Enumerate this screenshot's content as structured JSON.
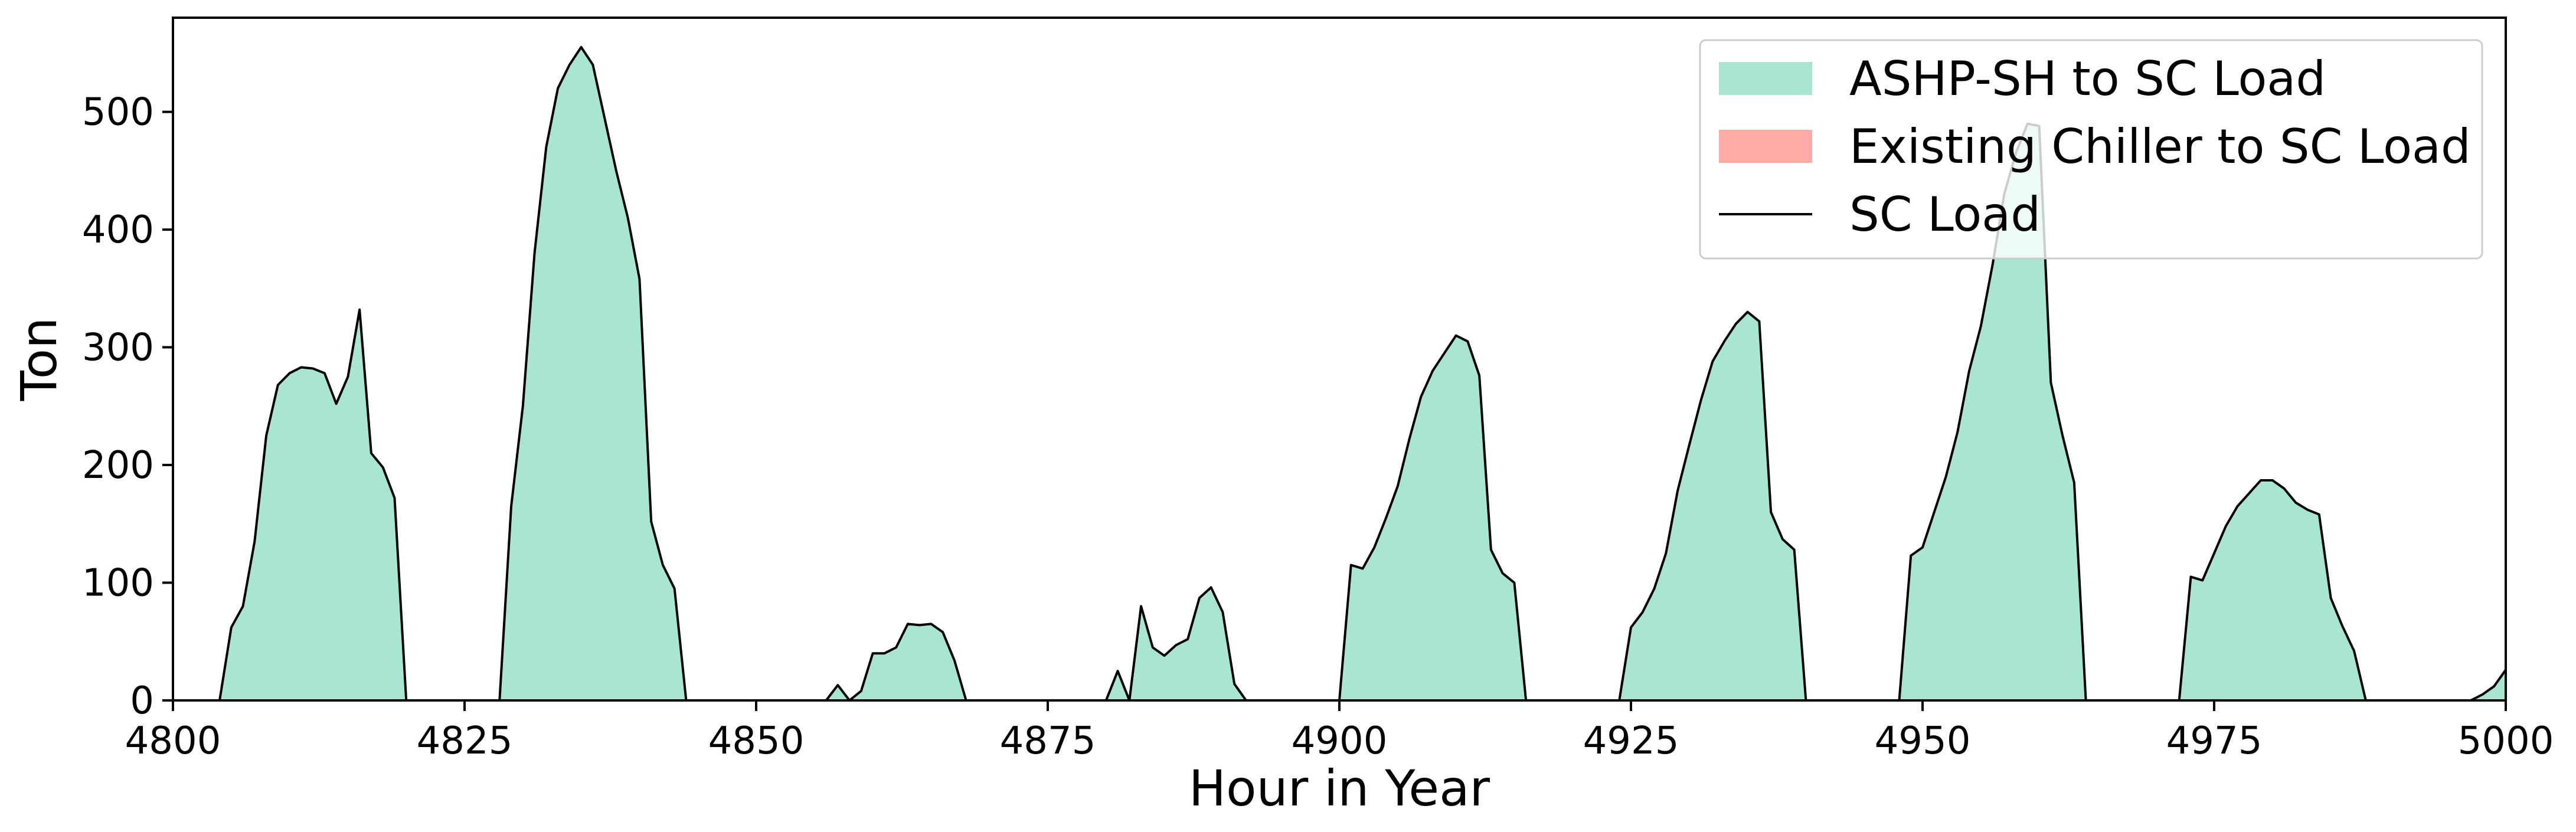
{
  "chart_data": {
    "type": "area",
    "title": "",
    "xlabel": "Hour in Year",
    "ylabel": "Ton",
    "xlim": [
      4800,
      5000
    ],
    "ylim": [
      0,
      580
    ],
    "xticks": [
      "4800",
      "4825",
      "4850",
      "4875",
      "4900",
      "4925",
      "4950",
      "4975",
      "5000"
    ],
    "yticks": [
      "0",
      "100",
      "200",
      "300",
      "400",
      "500"
    ],
    "grid": false,
    "legend_position": "top-right",
    "legend": [
      {
        "label": "ASHP-SH to SC Load",
        "kind": "area",
        "color": "#a8e6cf"
      },
      {
        "label": "Existing Chiller to SC Load",
        "kind": "area",
        "color": "#ffaaa5"
      },
      {
        "label": "SC Load",
        "kind": "line",
        "color": "#000000"
      }
    ],
    "x": [
      4800,
      4804,
      4805,
      4806,
      4807,
      4808,
      4809,
      4810,
      4811,
      4812,
      4813,
      4814,
      4815,
      4816,
      4817,
      4818,
      4819,
      4820,
      4828,
      4829,
      4830,
      4831,
      4832,
      4833,
      4834,
      4835,
      4836,
      4837,
      4838,
      4839,
      4840,
      4841,
      4842,
      4843,
      4844,
      4856,
      4857,
      4858,
      4859,
      4860,
      4861,
      4862,
      4863,
      4864,
      4865,
      4866,
      4867,
      4868,
      4880,
      4881,
      4882,
      4883,
      4884,
      4885,
      4886,
      4887,
      4888,
      4889,
      4890,
      4891,
      4892,
      4900,
      4901,
      4902,
      4903,
      4904,
      4905,
      4906,
      4907,
      4908,
      4909,
      4910,
      4911,
      4912,
      4913,
      4914,
      4915,
      4916,
      4924,
      4925,
      4926,
      4927,
      4928,
      4929,
      4930,
      4931,
      4932,
      4933,
      4934,
      4935,
      4936,
      4937,
      4938,
      4939,
      4940,
      4948,
      4949,
      4950,
      4951,
      4952,
      4953,
      4954,
      4955,
      4956,
      4957,
      4958,
      4959,
      4960,
      4961,
      4962,
      4963,
      4964,
      4972,
      4973,
      4974,
      4975,
      4976,
      4977,
      4978,
      4979,
      4980,
      4981,
      4982,
      4983,
      4984,
      4985,
      4986,
      4987,
      4988,
      4997,
      4998,
      4999,
      5000
    ],
    "series": [
      {
        "name": "ASHP-SH to SC Load",
        "values": [
          0,
          0,
          62,
          80,
          135,
          225,
          268,
          278,
          283,
          282,
          278,
          252,
          275,
          332,
          210,
          198,
          172,
          0,
          0,
          165,
          250,
          380,
          470,
          520,
          540,
          555,
          540,
          495,
          450,
          410,
          358,
          152,
          115,
          95,
          0,
          0,
          13,
          0,
          8,
          40,
          40,
          45,
          65,
          64,
          65,
          58,
          34,
          0,
          0,
          25,
          0,
          80,
          45,
          38,
          47,
          52,
          87,
          96,
          75,
          14,
          0,
          0,
          115,
          112,
          130,
          155,
          182,
          222,
          258,
          280,
          295,
          310,
          305,
          276,
          128,
          108,
          100,
          0,
          0,
          62,
          75,
          95,
          125,
          178,
          217,
          255,
          288,
          305,
          320,
          330,
          322,
          160,
          137,
          128,
          0,
          0,
          123,
          130,
          160,
          190,
          228,
          280,
          318,
          370,
          430,
          465,
          490,
          488,
          270,
          225,
          185,
          0,
          0,
          105,
          102,
          125,
          148,
          165,
          176,
          187,
          187,
          180,
          168,
          162,
          158,
          87,
          63,
          42,
          0,
          0,
          5,
          12,
          26
        ]
      },
      {
        "name": "Existing Chiller to SC Load",
        "values": [
          0,
          0,
          0,
          0,
          0,
          0,
          0,
          0,
          0,
          0,
          0,
          0,
          0,
          0,
          0,
          0,
          0,
          0,
          0,
          0,
          0,
          0,
          0,
          0,
          0,
          0,
          0,
          0,
          0,
          0,
          0,
          0,
          0,
          0,
          0,
          0,
          0,
          0,
          0,
          0,
          0,
          0,
          0,
          0,
          0,
          0,
          0,
          0,
          0,
          0,
          0,
          0,
          0,
          0,
          0,
          0,
          0,
          0,
          0,
          0,
          0,
          0,
          0,
          0,
          0,
          0,
          0,
          0,
          0,
          0,
          0,
          0,
          0,
          0,
          0,
          0,
          0,
          0,
          0,
          0,
          0,
          0,
          0,
          0,
          0,
          0,
          0,
          0,
          0,
          0,
          0,
          0,
          0,
          0,
          0,
          0,
          0,
          0,
          0,
          0,
          0,
          0,
          0,
          0,
          0,
          0,
          0,
          0,
          0,
          0,
          0,
          0,
          0,
          0,
          0,
          0,
          0,
          0,
          0,
          0,
          0,
          0,
          0,
          0,
          0,
          0,
          0,
          0,
          0,
          0,
          0,
          0,
          0
        ]
      },
      {
        "name": "SC Load",
        "values": [
          0,
          0,
          62,
          80,
          135,
          225,
          268,
          278,
          283,
          282,
          278,
          252,
          275,
          332,
          210,
          198,
          172,
          0,
          0,
          165,
          250,
          380,
          470,
          520,
          540,
          555,
          540,
          495,
          450,
          410,
          358,
          152,
          115,
          95,
          0,
          0,
          13,
          0,
          8,
          40,
          40,
          45,
          65,
          64,
          65,
          58,
          34,
          0,
          0,
          25,
          0,
          80,
          45,
          38,
          47,
          52,
          87,
          96,
          75,
          14,
          0,
          0,
          115,
          112,
          130,
          155,
          182,
          222,
          258,
          280,
          295,
          310,
          305,
          276,
          128,
          108,
          100,
          0,
          0,
          62,
          75,
          95,
          125,
          178,
          217,
          255,
          288,
          305,
          320,
          330,
          322,
          160,
          137,
          128,
          0,
          0,
          123,
          130,
          160,
          190,
          228,
          280,
          318,
          370,
          430,
          465,
          490,
          488,
          270,
          225,
          185,
          0,
          0,
          105,
          102,
          125,
          148,
          165,
          176,
          187,
          187,
          180,
          168,
          162,
          158,
          87,
          63,
          42,
          0,
          0,
          5,
          12,
          26
        ]
      }
    ]
  }
}
